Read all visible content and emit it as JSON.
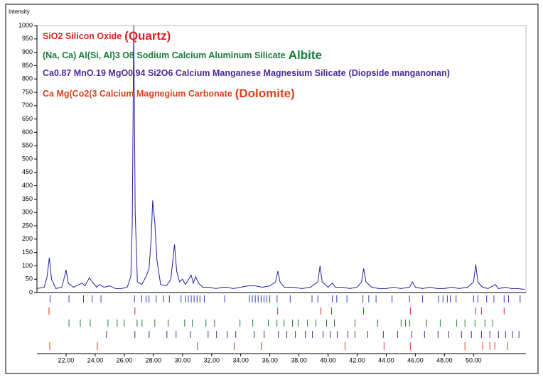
{
  "chart_data": {
    "type": "line",
    "ylabel": "Intensity",
    "color": "#2020a8",
    "xlim": [
      20,
      53.6
    ],
    "ylim": [
      0,
      1000
    ],
    "yticks": [
      0,
      50,
      100,
      150,
      200,
      250,
      300,
      350,
      400,
      450,
      500,
      550,
      600,
      650,
      700,
      750,
      800,
      850,
      900,
      950,
      1000
    ],
    "xticks": [
      {
        "value": 22,
        "label": "22.00"
      },
      {
        "value": 24,
        "label": "24.00"
      },
      {
        "value": 26,
        "label": "26.00"
      },
      {
        "value": 28,
        "label": "28.00"
      },
      {
        "value": 30,
        "label": "30.00"
      },
      {
        "value": 32,
        "label": "32.00"
      },
      {
        "value": 34,
        "label": "34.00"
      },
      {
        "value": 36,
        "label": "36.00"
      },
      {
        "value": 38,
        "label": "38.00"
      },
      {
        "value": 40,
        "label": "40.00"
      },
      {
        "value": 42,
        "label": "42.00"
      },
      {
        "value": 44,
        "label": "44.00"
      },
      {
        "value": 46,
        "label": "46.00"
      },
      {
        "value": 48,
        "label": "48.00"
      },
      {
        "value": 50,
        "label": "50.00"
      }
    ],
    "x": [
      20.0,
      20.5,
      20.7,
      20.85,
      21.0,
      21.3,
      21.7,
      21.9,
      22.0,
      22.15,
      22.5,
      22.9,
      23.1,
      23.3,
      23.6,
      23.8,
      24.1,
      24.3,
      24.6,
      25.0,
      25.4,
      25.8,
      26.2,
      26.45,
      26.55,
      26.65,
      26.75,
      26.9,
      27.2,
      27.5,
      27.7,
      27.85,
      27.95,
      28.1,
      28.25,
      28.5,
      28.9,
      29.2,
      29.45,
      29.6,
      29.8,
      30.0,
      30.2,
      30.6,
      30.75,
      30.9,
      31.1,
      31.4,
      31.8,
      32.3,
      32.8,
      33.0,
      33.5,
      34.0,
      34.5,
      35.0,
      35.5,
      36.0,
      36.4,
      36.55,
      36.7,
      37.0,
      37.6,
      38.2,
      38.8,
      39.3,
      39.45,
      39.6,
      40.0,
      40.3,
      40.5,
      41.0,
      41.5,
      42.0,
      42.3,
      42.45,
      42.6,
      43.0,
      43.5,
      44.0,
      44.5,
      45.0,
      45.6,
      45.8,
      46.0,
      46.5,
      47.0,
      47.5,
      48.0,
      48.5,
      49.0,
      49.6,
      50.0,
      50.15,
      50.3,
      50.6,
      51.0,
      51.5,
      51.7,
      52.2,
      52.6,
      53.0,
      53.5
    ],
    "values": [
      15,
      20,
      60,
      130,
      50,
      15,
      20,
      60,
      85,
      35,
      20,
      30,
      35,
      25,
      55,
      40,
      20,
      30,
      20,
      25,
      15,
      15,
      20,
      60,
      260,
      1000,
      300,
      40,
      30,
      60,
      90,
      200,
      345,
      260,
      120,
      30,
      25,
      50,
      180,
      80,
      40,
      50,
      30,
      65,
      35,
      60,
      35,
      20,
      20,
      15,
      20,
      20,
      15,
      20,
      25,
      25,
      20,
      25,
      40,
      80,
      40,
      20,
      20,
      15,
      20,
      40,
      100,
      40,
      20,
      35,
      20,
      20,
      15,
      20,
      40,
      90,
      40,
      20,
      15,
      15,
      20,
      15,
      20,
      40,
      20,
      15,
      20,
      15,
      15,
      20,
      15,
      20,
      40,
      105,
      40,
      20,
      15,
      30,
      15,
      20,
      15,
      15,
      12
    ],
    "peak_color": "#2b3bbf",
    "peak_positions": [
      20.9,
      22.2,
      23.2,
      23.8,
      24.4,
      26.7,
      27.2,
      27.5,
      27.7,
      28.2,
      28.7,
      29.1,
      29.9,
      30.2,
      30.4,
      30.6,
      30.8,
      31.0,
      31.2,
      31.5,
      32.9,
      34.6,
      34.8,
      35.0,
      35.2,
      35.4,
      35.6,
      35.8,
      36.0,
      36.5,
      37.4,
      38.9,
      39.3,
      40.3,
      40.6,
      41.3,
      42.4,
      42.8,
      43.3,
      44.4,
      45.6,
      46.5,
      47.6,
      47.9,
      48.2,
      48.4,
      48.8,
      50.0,
      50.3,
      50.9,
      51.4,
      52.1,
      52.4,
      53.2
    ],
    "phases": [
      {
        "label": "SiO2 Silicon Oxide",
        "mineral": "(Quartz)",
        "emphasis": true,
        "color": "#e02020",
        "positions": [
          20.83,
          26.73,
          36.54,
          39.51,
          40.24,
          42.44,
          45.66,
          50.15,
          50.54,
          52.1
        ]
      },
      {
        "label": "(Na, Ca) Al(Si, Al)3 O8 Sodium Calcium Aluminum Silicate",
        "mineral": "Albite",
        "emphasis": true,
        "color": "#1a7a3a",
        "positions": [
          22.2,
          22.98,
          23.66,
          24.88,
          25.51,
          26.0,
          26.88,
          27.22,
          28.1,
          29.02,
          30.15,
          30.68,
          31.61,
          32.2,
          33.95,
          34.83,
          35.9,
          36.49,
          36.98,
          37.56,
          37.95,
          38.59,
          39.17,
          39.9,
          40.44,
          41.85,
          43.41,
          45.02,
          45.32,
          45.61,
          46.78,
          47.71,
          48.83,
          49.41,
          50.1,
          50.78,
          51.32
        ]
      },
      {
        "label": "Ca0.87 MnO.19 MgO0.94 Si2O6 Calcium Manganese Magnesium Silicate",
        "mineral": "(Diopside manganonan)",
        "emphasis": false,
        "color": "#4b2a9a",
        "positions": [
          24.78,
          26.73,
          27.71,
          28.93,
          29.56,
          30.54,
          31.76,
          32.34,
          33.07,
          33.66,
          34.93,
          35.61,
          36.59,
          37.17,
          37.76,
          38.44,
          38.93,
          39.66,
          40.15,
          40.63,
          41.37,
          41.85,
          42.73,
          43.8,
          44.78,
          45.76,
          46.63,
          47.56,
          48.29,
          49.17,
          49.85,
          50.54,
          51.12,
          51.71,
          52.2,
          52.68,
          53.12
        ]
      },
      {
        "label": "Ca Mg(Co2(3 Calcium Magnegium Carbonate",
        "mineral": "(Dolomite)",
        "emphasis": true,
        "color": "#e0401e",
        "positions": [
          20.88,
          24.15,
          31.02,
          33.56,
          35.41,
          41.17,
          43.85,
          45.66,
          49.41,
          50.63,
          51.12,
          51.46,
          52.34
        ]
      }
    ]
  }
}
